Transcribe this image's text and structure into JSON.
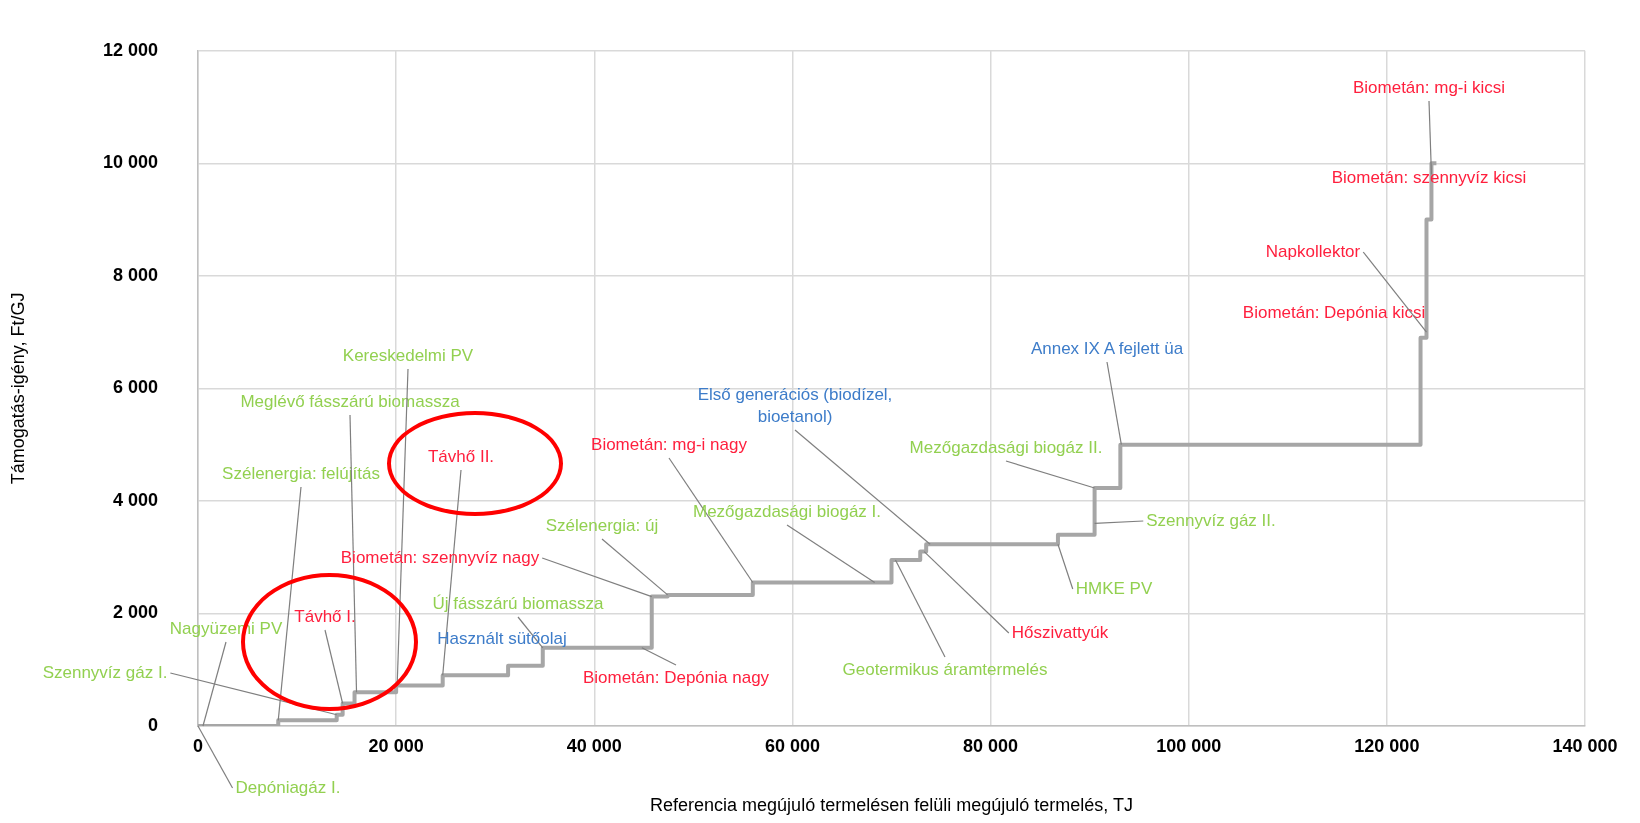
{
  "chart_data": {
    "type": "step",
    "xlabel": "Referencia megújuló termelésen felüli megújuló termelés, TJ",
    "ylabel": "Támogatás-igény, Ft/GJ",
    "series": [
      {
        "color": "#a6a6a6",
        "x": [
          0,
          8100,
          8100,
          14000,
          14000,
          14600,
          14600,
          15800,
          15800,
          20000,
          20000,
          24700,
          24700,
          31300,
          31300,
          34800,
          34800,
          45800,
          45800,
          47400,
          47400,
          56000,
          56000,
          70000,
          70000,
          72900,
          72900,
          73500,
          73500,
          86800,
          86800,
          90500,
          90500,
          93100,
          93100,
          123400,
          123400,
          124000,
          124000,
          124500,
          124500,
          125000
        ],
        "values": [
          0,
          0,
          100,
          100,
          200,
          200,
          400,
          400,
          600,
          600,
          720,
          720,
          900,
          900,
          1070,
          1070,
          1390,
          1390,
          2300,
          2300,
          2330,
          2330,
          2550,
          2550,
          2950,
          2950,
          3100,
          3100,
          3230,
          3230,
          3400,
          3400,
          4230,
          4230,
          5000,
          5000,
          6900,
          6900,
          9000,
          9000,
          10000,
          10000
        ]
      }
    ],
    "xlim": [
      0,
      140000
    ],
    "xticks": [
      {
        "value": 0,
        "label": "0"
      },
      {
        "value": 20000,
        "label": "20 000"
      },
      {
        "value": 40000,
        "label": "40 000"
      },
      {
        "value": 60000,
        "label": "60 000"
      },
      {
        "value": 80000,
        "label": "80 000"
      },
      {
        "value": 100000,
        "label": "100 000"
      },
      {
        "value": 120000,
        "label": "120 000"
      },
      {
        "value": 140000,
        "label": "140 000"
      }
    ],
    "ylim": [
      0,
      12000
    ],
    "yticks": [
      {
        "value": 0,
        "label": "0"
      },
      {
        "value": 2000,
        "label": "2 000"
      },
      {
        "value": 4000,
        "label": "4 000"
      },
      {
        "value": 6000,
        "label": "6 000"
      },
      {
        "value": 8000,
        "label": "8 000"
      },
      {
        "value": 10000,
        "label": "10 000"
      },
      {
        "value": 12000,
        "label": "12 000"
      }
    ],
    "grid": true,
    "legend": false,
    "marker": "none",
    "line_style": "solid",
    "annotations": [
      {
        "text": "Depóniagáz I.",
        "x": 0,
        "y": 0
      },
      {
        "text": "Szennyvíz gáz I.",
        "x": 14000,
        "y": 200
      },
      {
        "text": "Nagyüzemi PV",
        "x": 500,
        "y": 0
      },
      {
        "text": "Szélenergia: felújítás",
        "x": 8100,
        "y": 100
      },
      {
        "text": "Meglévő fásszárú biomassza",
        "x": 16000,
        "y": 600
      },
      {
        "text": "Kereskedelmi PV",
        "x": 20100,
        "y": 720
      },
      {
        "text": "Távhő II.",
        "x": 24700,
        "y": 900
      },
      {
        "text": "Távhő I.",
        "x": 14600,
        "y": 400
      },
      {
        "text": "Biometán: szennyvíz nagy",
        "x": 45800,
        "y": 2300
      },
      {
        "text": "Szélenergia: új",
        "x": 47400,
        "y": 2330
      },
      {
        "text": "Új fásszárú biomassza",
        "x": 34800,
        "y": 1390
      },
      {
        "text": "Használt sütőolaj",
        "x": 37000,
        "y": 1390
      },
      {
        "text": "Biometán: Depónia nagy",
        "x": 44800,
        "y": 1390
      },
      {
        "text": "Biometán: mg-i nagy",
        "x": 56000,
        "y": 2550
      },
      {
        "text": "Mezőgazdasági biogáz I.",
        "x": 68300,
        "y": 2550
      },
      {
        "text": "Geotermikus áramtermelés",
        "x": 70400,
        "y": 2950
      },
      {
        "text": "Első generációs (biodízel, bioetanol)",
        "x": 73900,
        "y": 3230
      },
      {
        "text": "Hőszivattyúk",
        "x": 73300,
        "y": 3100
      },
      {
        "text": "HMKE PV",
        "x": 86800,
        "y": 3230
      },
      {
        "text": "Mezőgazdasági biogáz II.",
        "x": 90500,
        "y": 4230
      },
      {
        "text": "Szennyvíz gáz II.",
        "x": 90500,
        "y": 3600
      },
      {
        "text": "Annex IX A fejlett üa",
        "x": 93200,
        "y": 5000
      },
      {
        "text": "Biometán: Depónia kicsi",
        "x": 123400,
        "y": 6900
      },
      {
        "text": "Napkollektor",
        "x": 124000,
        "y": 7000
      },
      {
        "text": "Biometán: szennyvíz kicsi",
        "x": 124000,
        "y": 9000
      },
      {
        "text": "Biometán: mg-i kicsi",
        "x": 124500,
        "y": 9800
      }
    ]
  }
}
